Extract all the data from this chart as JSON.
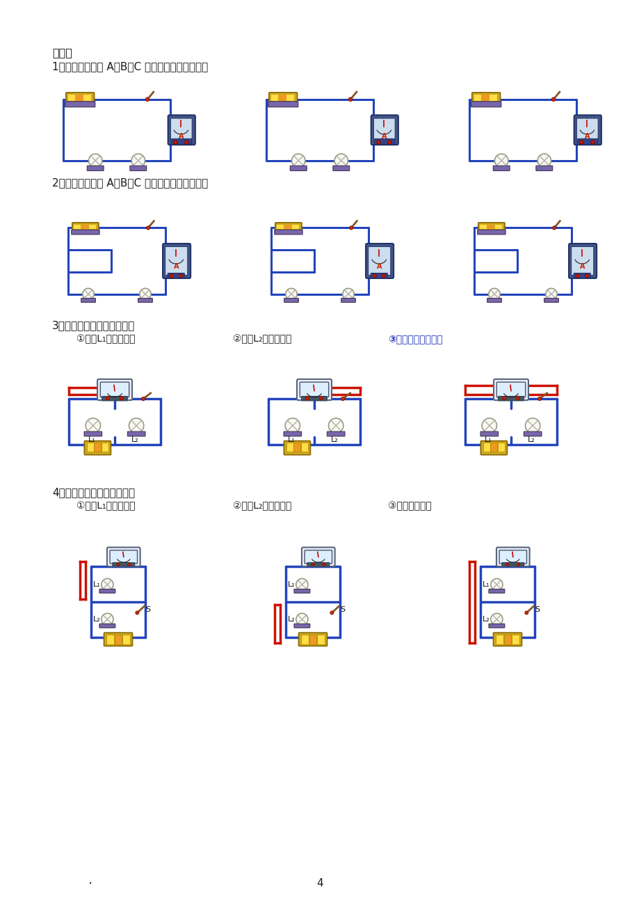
{
  "bg_color": "#ffffff",
  "text_color": "#1a1a1a",
  "title_header": "附表：",
  "section1_title": "1、串联电路电流 A、B、C 三处实物连接分别为：",
  "section2_title": "2、并联电路电流 A、B、C 三处实物连接分别为：",
  "section3_title": "3、串联电路电压实物连接：",
  "section3_sub1": "①测灯L₁两端的电压",
  "section3_sub2": "②测灯L₂两端的电压",
  "section3_sub3": "③串联电路两端电压",
  "section4_title": "4、并联电路电压实物连接：",
  "section4_sub1": "①测灯L₁两端的电压",
  "section4_sub2": "②测灯L₂两端的电压",
  "section4_sub3": "③电源两端电压",
  "page_number": "4",
  "blue_wire": "#2244bb",
  "red_wire": "#cc1100",
  "device_purple": "#7766aa",
  "device_blue": "#5577bb",
  "battery_yellow": "#ccaa22",
  "meter_face": "#ccddee",
  "lamp_white": "#f8f8ee",
  "component_base": "#8877bb"
}
